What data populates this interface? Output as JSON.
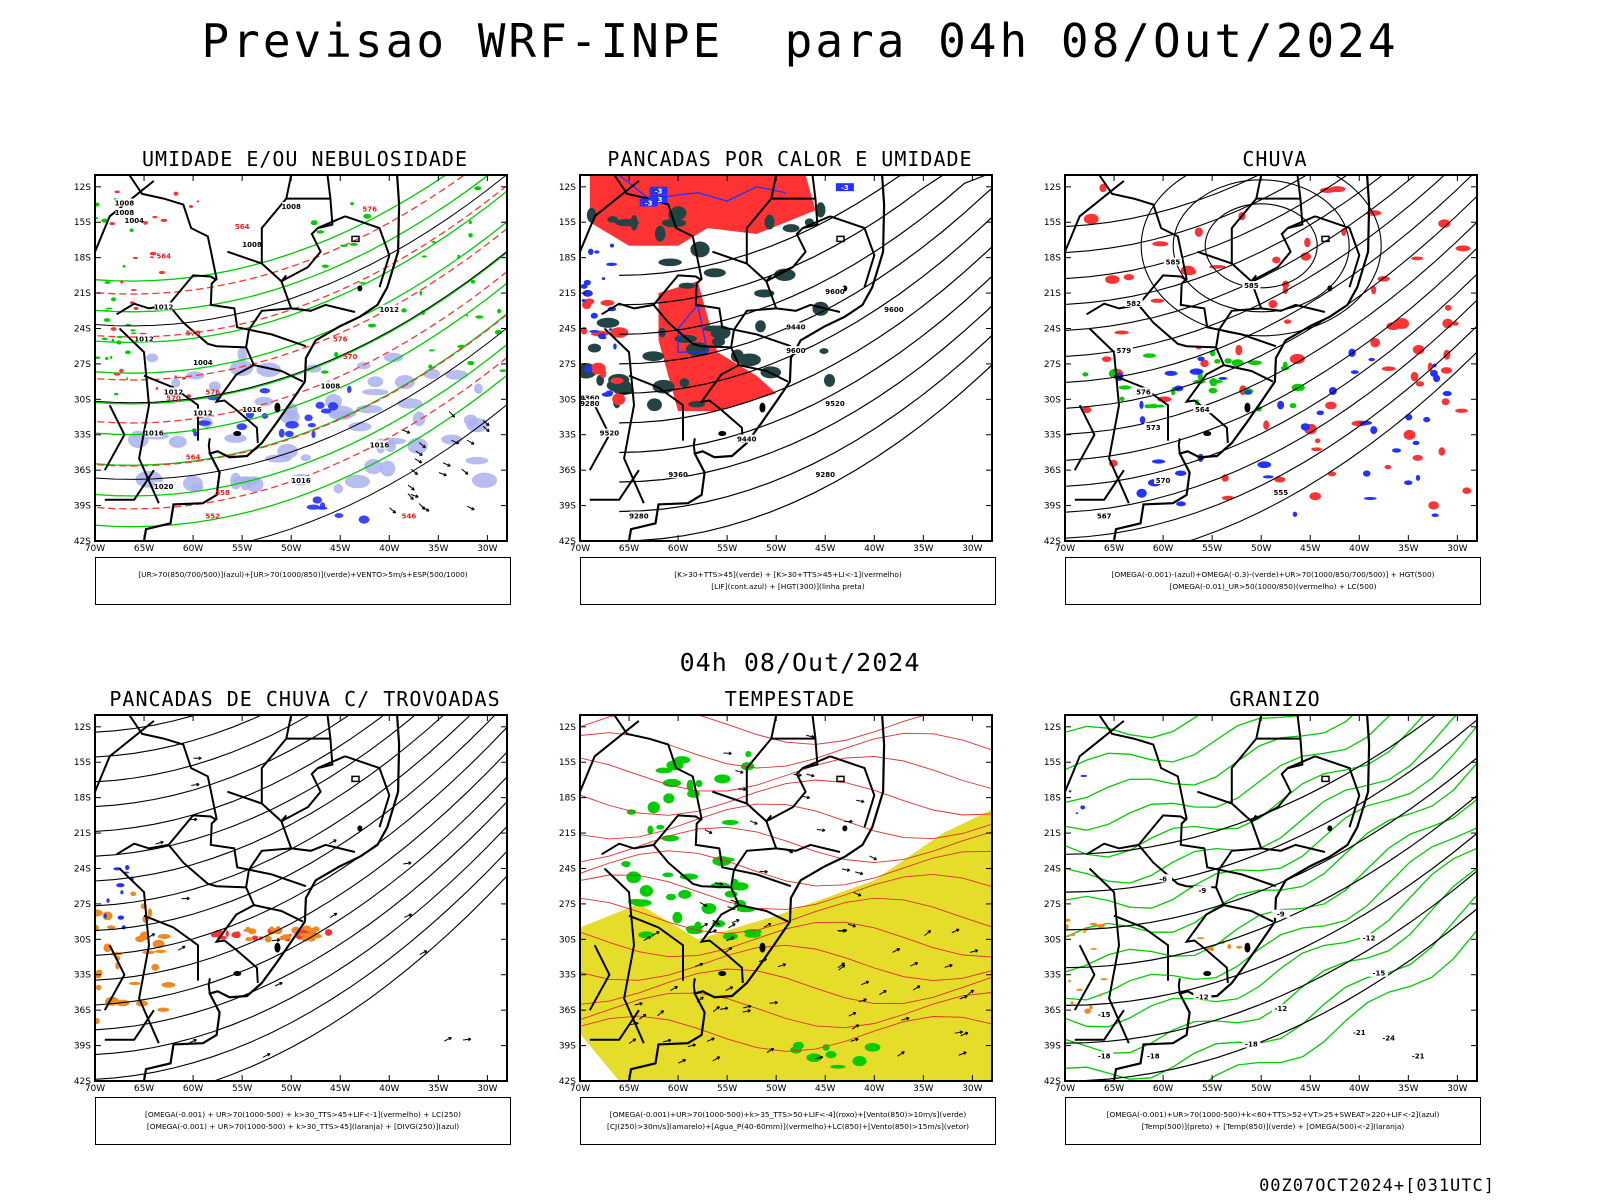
{
  "header": {
    "title": "Previsao WRF-INPE  para 04h 08/Out/2024",
    "mid_time": "04h 08/Out/2024",
    "footer": "00Z07OCT2024+[031UTC]"
  },
  "colors": {
    "land_line": "#000000",
    "green": "#00cc00",
    "red": "#ff3333",
    "blue": "#2233ff",
    "lavender": "#aab0ee",
    "dark_teal": "#234444",
    "yellow": "#e6dc2a",
    "orange": "#f08a20"
  },
  "panels": [
    {
      "title": "UMIDADE E/OU NEBULOSIDADE",
      "legend_lines": [
        "[UR>70(850/700/500)](azul)+[UR>70(1000/850)](verde)+VENTO>5m/s+ESP(500/1000)"
      ],
      "contour_labels": [
        "1008",
        "1008",
        "1012",
        "1012",
        "1012",
        "1016",
        "1016",
        "1020",
        "1008",
        "1016",
        "1012",
        "1016",
        "1004",
        "1008",
        "1012",
        "1004",
        "1008"
      ],
      "red_labels": [
        "564",
        "570",
        "576",
        "576",
        "570",
        "564",
        "558",
        "552",
        "564",
        "570",
        "576",
        "546"
      ]
    },
    {
      "title": "PANCADAS POR CALOR E UMIDADE",
      "legend_lines": [
        "[K>30+TTS>45](verde) + [K>30+TTS>45+LI<-1](vermelho)",
        "[LIF](cont.azul) + [HGT(300)](linha preta)"
      ],
      "contour_labels": [
        "9600",
        "9600",
        "9520",
        "9440",
        "9360",
        "9280",
        "9280",
        "9440",
        "9520",
        "9360",
        "9280",
        "9600"
      ],
      "blue_labels": [
        "-3",
        "-3",
        "-3",
        "-3"
      ]
    },
    {
      "title": "CHUVA",
      "legend_lines": [
        "[OMEGA(-0.001)-(azul)+OMEGA(-0.3)-(verde)+UR>70(1000/850/700/500)] + HGT(500)",
        "[OMEGA(-0.01)_UR>50(1000/850)(vermelho) + LC(500)"
      ],
      "contour_labels": [
        "585",
        "585",
        "582",
        "579",
        "576",
        "573",
        "570",
        "567",
        "564",
        "555"
      ]
    },
    {
      "title": "PANCADAS DE CHUVA C/ TROVOADAS",
      "legend_lines": [
        "[OMEGA(-0.001) + UR>70(1000-500) + k>30_TTS>45+LIF<-1](vermelho) + LC(250)",
        "[OMEGA(-0.001) + UR>70(1000-500) + k>30_TTS>45](laranja) + [DIVG(250)](azul)"
      ]
    },
    {
      "title": "TEMPESTADE",
      "legend_lines": [
        "[OMEGA(-0.001)+UR>70(1000-500)+k>35_TTS>50+LIF<-4](roxo)+[Vento(850)>10m/s](verde)",
        "[CJ(250)>30m/s](amarelo)+[Agua_P(40-60mm)](vermelho)+LC(850)+[Vento(850)>15m/s](vetor)"
      ]
    },
    {
      "title": "GRANIZO",
      "legend_lines": [
        "[OMEGA(-0.001)+UR>70(1000-500)+k<60+TTS>52+VT>25+SWEAT>220+LIF<-2](azul)",
        "[Temp(500)](preto) + [Temp(850)](verde) + [OMEGA(500)<-2](laranja)"
      ],
      "contour_labels": [
        "-6",
        "-9",
        "-12",
        "-12",
        "-15",
        "-15",
        "-18",
        "-21",
        "-24",
        "-12",
        "-18",
        "-21",
        "-18",
        "-9"
      ]
    }
  ],
  "axes": {
    "lat_labels": [
      "12S",
      "15S",
      "18S",
      "21S",
      "24S",
      "27S",
      "30S",
      "33S",
      "36S",
      "39S",
      "42S"
    ],
    "lon_labels": [
      "70W",
      "65W",
      "60W",
      "55W",
      "50W",
      "45W",
      "40W",
      "35W",
      "30W"
    ]
  }
}
